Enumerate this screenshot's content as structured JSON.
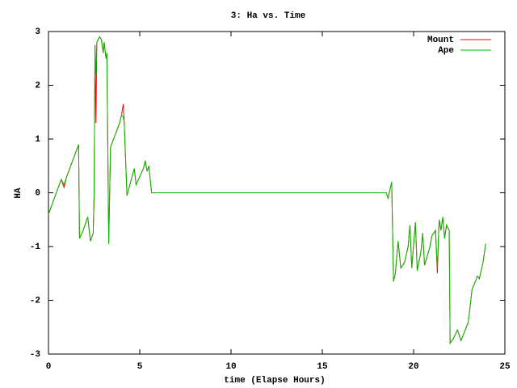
{
  "chart_data": {
    "type": "line",
    "title": "3: Ha vs. Time",
    "x_label": "time (Elapse Hours)",
    "y_label": "HA",
    "x": [
      0,
      0.7,
      0.85,
      1.0,
      1.6,
      1.65,
      1.7,
      1.9,
      2.15,
      2.3,
      2.45,
      2.5,
      2.55,
      2.6,
      2.65,
      2.8,
      2.9,
      3.0,
      3.05,
      3.15,
      3.2,
      3.3,
      3.4,
      3.9,
      4.0,
      4.1,
      4.15,
      4.3,
      4.5,
      4.7,
      4.8,
      5.2,
      5.3,
      5.4,
      5.5,
      5.65,
      18.5,
      18.6,
      18.8,
      18.9,
      19.0,
      19.15,
      19.3,
      19.5,
      19.7,
      19.8,
      19.9,
      20.1,
      20.2,
      20.4,
      20.5,
      20.6,
      20.9,
      21.0,
      21.2,
      21.3,
      21.4,
      21.5,
      21.6,
      21.7,
      21.8,
      21.95,
      22.0,
      22.2,
      22.4,
      22.6,
      23.0,
      23.2,
      23.5,
      23.6,
      23.8,
      23.95
    ],
    "series": [
      {
        "name": "Mount",
        "color": "#ff0000",
        "values": [
          -0.4,
          0.25,
          0.1,
          0.3,
          0.85,
          0.9,
          -0.85,
          -0.7,
          -0.45,
          -0.9,
          -0.75,
          -0.1,
          2.75,
          1.3,
          2.8,
          2.9,
          2.85,
          2.6,
          2.8,
          2.5,
          2.6,
          -0.95,
          0.85,
          1.3,
          1.45,
          1.65,
          1.3,
          -0.05,
          0.2,
          0.45,
          0.15,
          0.45,
          0.6,
          0.4,
          0.5,
          0.0,
          0.0,
          -0.1,
          0.2,
          -1.65,
          -1.5,
          -0.9,
          -1.4,
          -1.3,
          -1.0,
          -0.6,
          -1.4,
          -0.55,
          -1.45,
          -1.1,
          -0.75,
          -1.35,
          -1.0,
          -0.8,
          -0.7,
          -1.5,
          -0.5,
          -0.7,
          -0.45,
          -0.85,
          -0.6,
          -0.7,
          -2.8,
          -2.7,
          -2.55,
          -2.75,
          -2.4,
          -1.8,
          -1.55,
          -1.6,
          -1.3,
          -0.95
        ]
      },
      {
        "name": "Ape",
        "color": "#00bb00",
        "values": [
          -0.4,
          0.25,
          0.15,
          0.3,
          0.85,
          0.9,
          -0.85,
          -0.7,
          -0.45,
          -0.9,
          -0.75,
          0.0,
          2.7,
          2.2,
          2.8,
          2.9,
          2.85,
          2.6,
          2.8,
          2.5,
          2.6,
          -0.95,
          0.85,
          1.3,
          1.45,
          1.4,
          1.3,
          -0.05,
          0.2,
          0.45,
          0.15,
          0.45,
          0.6,
          0.4,
          0.5,
          0.0,
          0.0,
          -0.1,
          0.2,
          -1.65,
          -1.5,
          -0.9,
          -1.4,
          -1.3,
          -1.0,
          -0.6,
          -1.4,
          -0.55,
          -1.45,
          -1.1,
          -0.75,
          -1.35,
          -1.0,
          -0.8,
          -0.7,
          -1.4,
          -0.5,
          -0.7,
          -0.45,
          -0.85,
          -0.6,
          -0.7,
          -2.8,
          -2.7,
          -2.55,
          -2.75,
          -2.4,
          -1.8,
          -1.55,
          -1.6,
          -1.3,
          -0.95
        ]
      }
    ],
    "xlim": [
      0,
      25
    ],
    "xticks": [
      0,
      5,
      10,
      15,
      20,
      25
    ],
    "ylim": [
      -3,
      3
    ],
    "yticks": [
      -3,
      -2,
      -1,
      0,
      1,
      2,
      3
    ],
    "legend": "top-right"
  }
}
